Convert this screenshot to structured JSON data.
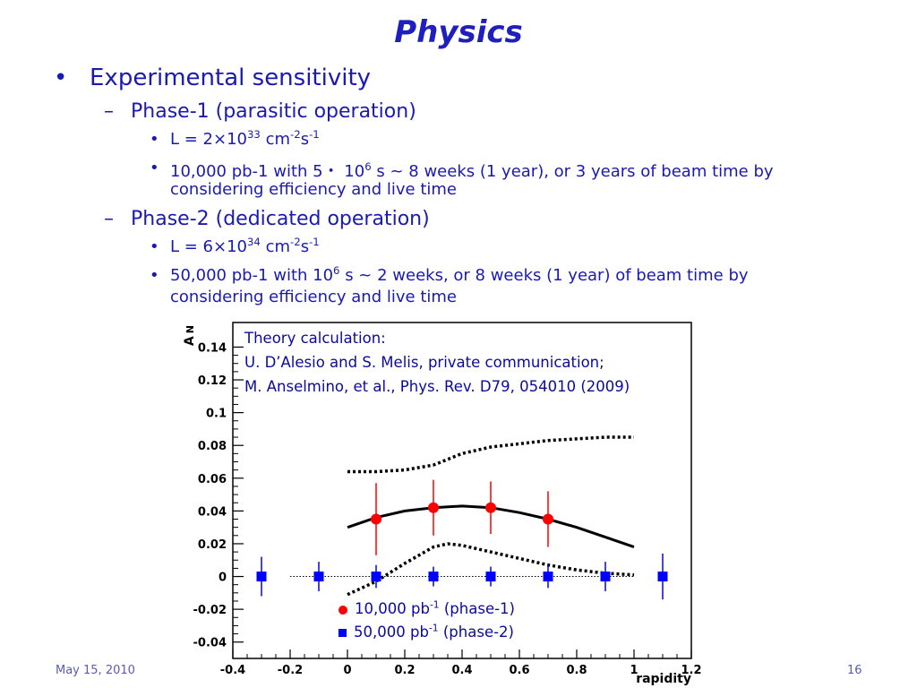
{
  "slide": {
    "title": "Physics",
    "footer_date": "May 15, 2010",
    "page_number": "16",
    "bullets": {
      "main": "Experimental sensitivity",
      "phase1": {
        "label": "Phase-1 (parasitic operation)",
        "lum_prefix": "L = 2×10",
        "lum_exp": "33",
        "lum_unit": " cm",
        "lum_unit_exp1": "-2",
        "lum_s": "s",
        "lum_unit_exp2": "-1",
        "time_prefix": "10,000 pb-1 with 5・ 10",
        "time_exp": "6",
        "time_rest": " s ~ 8 weeks (1 year), or 3 years of beam time by",
        "time_cont": "considering efficiency and live time"
      },
      "phase2": {
        "label": "Phase-2 (dedicated operation)",
        "lum_prefix": "L = 6×10",
        "lum_exp": "34",
        "lum_unit": " cm",
        "lum_unit_exp1": "-2",
        "lum_s": "s",
        "lum_unit_exp2": "-1",
        "time_prefix": "50,000 pb-1 with 10",
        "time_exp": "6",
        "time_rest": " s ~ 2 weeks, or 8 weeks (1 year) of beam time by",
        "time_cont": "considering efficiency and live time"
      }
    }
  },
  "chart_data": {
    "type": "scatter",
    "xlabel": "rapidity",
    "ylabel": "A_N",
    "xlim": [
      -0.4,
      1.2
    ],
    "ylim": [
      -0.05,
      0.155
    ],
    "x_ticks": [
      "-0.4",
      "-0.2",
      "0",
      "0.2",
      "0.4",
      "0.6",
      "0.8",
      "1",
      "1.2"
    ],
    "y_ticks": [
      "-0.04",
      "-0.02",
      "0",
      "0.02",
      "0.04",
      "0.06",
      "0.08",
      "0.1",
      "0.12",
      "0.14"
    ],
    "note_lines": [
      "Theory calculation:",
      "U. D’Alesio and S. Melis, private communication;",
      "M. Anselmino, et al., Phys. Rev. D79, 054010 (2009)"
    ],
    "legend": [
      {
        "prefix": "10,000 pb",
        "sup": "-1",
        "suffix": " (phase-1)",
        "marker": "circle",
        "color": "#ff0000"
      },
      {
        "prefix": "50,000 pb",
        "sup": "-1",
        "suffix": " (phase-2)",
        "marker": "square",
        "color": "#0000ff"
      }
    ],
    "series": [
      {
        "marker": "circle",
        "color": "#ff0000",
        "x": [
          0.1,
          0.3,
          0.5,
          0.7
        ],
        "y": [
          0.035,
          0.042,
          0.042,
          0.035
        ],
        "err": [
          0.022,
          0.017,
          0.016,
          0.017
        ]
      },
      {
        "marker": "square",
        "color": "#0000ff",
        "x": [
          -0.3,
          -0.1,
          0.1,
          0.3,
          0.5,
          0.7,
          0.9,
          1.1
        ],
        "y": [
          0,
          0,
          0,
          0,
          0,
          0,
          0,
          0
        ],
        "err": [
          0.012,
          0.009,
          0.007,
          0.006,
          0.006,
          0.007,
          0.009,
          0.014
        ]
      }
    ],
    "curves": [
      {
        "style": "solid",
        "x": [
          0,
          0.1,
          0.2,
          0.3,
          0.4,
          0.5,
          0.6,
          0.7,
          0.8,
          0.9,
          1.0
        ],
        "y": [
          0.03,
          0.036,
          0.04,
          0.042,
          0.043,
          0.042,
          0.039,
          0.035,
          0.03,
          0.024,
          0.018
        ]
      },
      {
        "style": "dotted",
        "x": [
          0,
          0.1,
          0.2,
          0.3,
          0.4,
          0.5,
          0.6,
          0.7,
          0.8,
          0.9,
          1.0
        ],
        "y": [
          0.064,
          0.064,
          0.065,
          0.068,
          0.075,
          0.079,
          0.081,
          0.083,
          0.084,
          0.085,
          0.085
        ]
      },
      {
        "style": "dotted",
        "x": [
          0,
          0.1,
          0.2,
          0.3,
          0.35,
          0.4,
          0.5,
          0.6,
          0.7,
          0.8,
          0.9,
          1.0
        ],
        "y": [
          -0.011,
          -0.003,
          0.008,
          0.018,
          0.02,
          0.019,
          0.015,
          0.011,
          0.007,
          0.004,
          0.002,
          0.001
        ]
      },
      {
        "style": "fine-dotted",
        "x": [
          -0.2,
          1.0
        ],
        "y": [
          0,
          0
        ]
      }
    ]
  }
}
